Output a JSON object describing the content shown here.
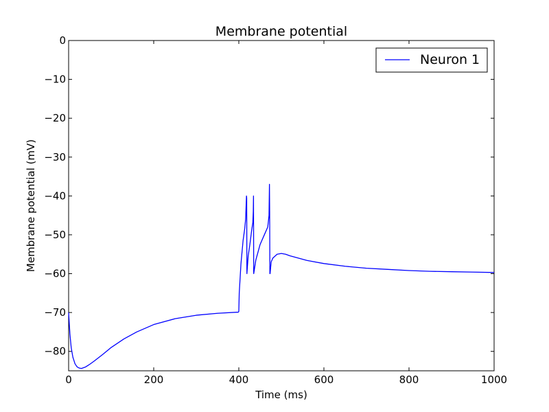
{
  "chart_data": {
    "type": "line",
    "title": "Membrane potential",
    "xlabel": "Time (ms)",
    "ylabel": "Membrane potential (mV)",
    "xlim": [
      0,
      1000
    ],
    "ylim": [
      -85,
      0
    ],
    "xticks": [
      0,
      200,
      400,
      600,
      800,
      1000
    ],
    "yticks": [
      0,
      -10,
      -20,
      -30,
      -40,
      -50,
      -60,
      -70,
      -80
    ],
    "xtick_labels": [
      "0",
      "200",
      "400",
      "600",
      "800",
      "1000"
    ],
    "ytick_labels": [
      "0",
      "−10",
      "−20",
      "−30",
      "−40",
      "−50",
      "−60",
      "−70",
      "−80"
    ],
    "grid": false,
    "legend_position": "top-right",
    "series": [
      {
        "name": "Neuron 1",
        "color": "#0000ff",
        "x": [
          0,
          3,
          6,
          10,
          15,
          20,
          25,
          30,
          35,
          40,
          50,
          60,
          80,
          100,
          130,
          160,
          200,
          250,
          300,
          350,
          399,
          400,
          401,
          405,
          410,
          414,
          416,
          418,
          418.5,
          419,
          422,
          426,
          430,
          433,
          434,
          434.5,
          435,
          440,
          450,
          460,
          468,
          471,
          472,
          472.5,
          473,
          473.5,
          476,
          480,
          490,
          500,
          510,
          520,
          540,
          560,
          600,
          650,
          700,
          750,
          800,
          850,
          900,
          950,
          1000
        ],
        "y": [
          -70,
          -75.5,
          -79,
          -81.5,
          -83.2,
          -84,
          -84.3,
          -84.4,
          -84.2,
          -84,
          -83.3,
          -82.5,
          -80.8,
          -79,
          -76.8,
          -75,
          -73.1,
          -71.6,
          -70.7,
          -70.2,
          -69.9,
          -69.7,
          -65,
          -57.5,
          -51.5,
          -48.3,
          -46,
          -40,
          -40.5,
          -60,
          -55.5,
          -52.5,
          -49,
          -46.8,
          -44,
          -40,
          -60,
          -56.5,
          -52.5,
          -50,
          -48,
          -45,
          -37,
          -44,
          -60,
          -60,
          -57,
          -56,
          -55,
          -54.8,
          -55,
          -55.4,
          -56,
          -56.6,
          -57.4,
          -58.1,
          -58.6,
          -58.9,
          -59.2,
          -59.4,
          -59.5,
          -59.6,
          -59.7
        ]
      }
    ]
  }
}
